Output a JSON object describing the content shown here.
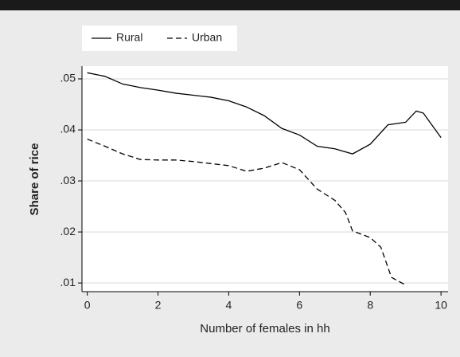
{
  "chart_data": {
    "type": "line",
    "x_label": "Number of females in hh",
    "y_label": "Share of rice",
    "xlim": [
      -0.15,
      10.2
    ],
    "ylim": [
      0.0083,
      0.0525
    ],
    "xticks": [
      0,
      2,
      4,
      6,
      8,
      10
    ],
    "yticks": [
      {
        "value": 0.01,
        "label": ".01"
      },
      {
        "value": 0.02,
        "label": ".02"
      },
      {
        "value": 0.03,
        "label": ".03"
      },
      {
        "value": 0.04,
        "label": ".04"
      },
      {
        "value": 0.05,
        "label": ".05"
      }
    ],
    "grid": true,
    "legend": "top-left",
    "series": [
      {
        "name": "Rural",
        "color": "#000000",
        "style": "solid",
        "x": [
          0,
          0.5,
          1,
          1.5,
          2,
          2.5,
          3,
          3.5,
          4,
          4.5,
          5,
          5.5,
          6,
          6.5,
          7,
          7.5,
          8,
          8.5,
          9,
          9.3,
          9.5,
          10
        ],
        "values": [
          0.0512,
          0.0505,
          0.049,
          0.0483,
          0.0478,
          0.0472,
          0.0468,
          0.0464,
          0.0457,
          0.0445,
          0.0428,
          0.0403,
          0.039,
          0.0368,
          0.0363,
          0.0353,
          0.0372,
          0.041,
          0.0415,
          0.0437,
          0.0433,
          0.0385
        ]
      },
      {
        "name": "Urban",
        "color": "#000000",
        "style": "dashed",
        "x": [
          0,
          0.5,
          1,
          1.5,
          2,
          2.5,
          3,
          3.5,
          4,
          4.5,
          5,
          5.5,
          6,
          6.5,
          7,
          7.3,
          7.5,
          8,
          8.3,
          8.6,
          9
        ],
        "values": [
          0.0382,
          0.0368,
          0.0353,
          0.0342,
          0.0341,
          0.0341,
          0.0338,
          0.0334,
          0.033,
          0.0319,
          0.0325,
          0.0336,
          0.0322,
          0.0284,
          0.0262,
          0.0238,
          0.0202,
          0.0189,
          0.017,
          0.0111,
          0.0096
        ]
      }
    ]
  }
}
